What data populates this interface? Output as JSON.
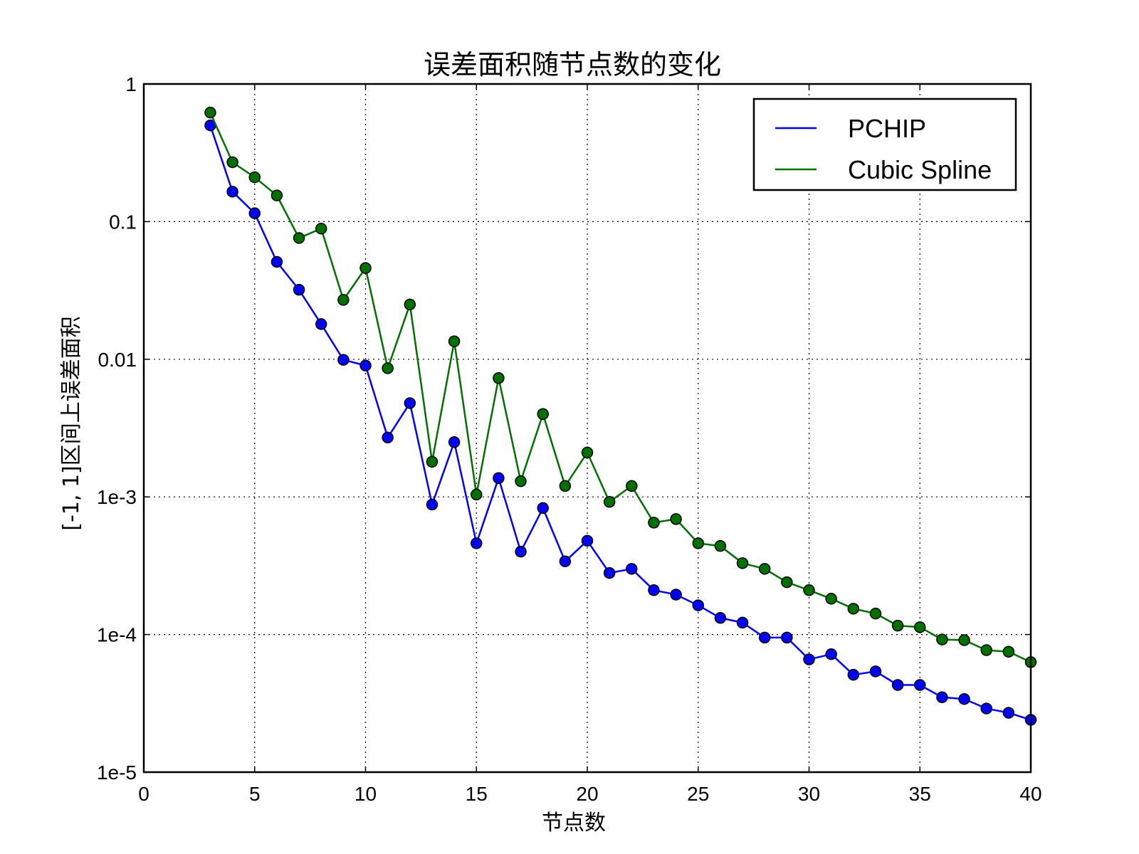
{
  "chart_data": {
    "type": "line",
    "title": "误差面积随节点数的变化",
    "xlabel": "节点数",
    "ylabel": "[-1, 1]区间上误差面积",
    "xlim": [
      0,
      40
    ],
    "ylim": [
      1e-05,
      1
    ],
    "yscale": "log",
    "grid": true,
    "legend_position": "top-right",
    "x_ticks": [
      "0",
      "5",
      "10",
      "15",
      "20",
      "25",
      "30",
      "35",
      "40"
    ],
    "y_ticks": [
      "1e-5",
      "1e-4",
      "1e-3",
      "0.01",
      "0.1",
      "1"
    ],
    "x": [
      3,
      4,
      5,
      6,
      7,
      8,
      9,
      10,
      11,
      12,
      13,
      14,
      15,
      16,
      17,
      18,
      19,
      20,
      21,
      22,
      23,
      24,
      25,
      26,
      27,
      28,
      29,
      30,
      31,
      32,
      33,
      34,
      35,
      36,
      37,
      38,
      39,
      40
    ],
    "series": [
      {
        "name": "PCHIP",
        "color": "#0000ff",
        "values": [
          0.5,
          0.165,
          0.115,
          0.051,
          0.032,
          0.018,
          0.0099,
          0.009,
          0.0027,
          0.0048,
          0.00088,
          0.0025,
          0.00046,
          0.00137,
          0.0004,
          0.00083,
          0.00034,
          0.00048,
          0.00028,
          0.0003,
          0.00021,
          0.000195,
          0.000163,
          0.000132,
          0.000122,
          9.5e-05,
          9.5e-05,
          6.6e-05,
          7.2e-05,
          5.1e-05,
          5.4e-05,
          4.3e-05,
          4.3e-05,
          3.5e-05,
          3.4e-05,
          2.9e-05,
          2.7e-05,
          2.4e-05
        ]
      },
      {
        "name": "Cubic Spline",
        "color": "#007000",
        "values": [
          0.62,
          0.27,
          0.21,
          0.155,
          0.076,
          0.089,
          0.027,
          0.046,
          0.0086,
          0.025,
          0.0018,
          0.0135,
          0.00104,
          0.0073,
          0.0013,
          0.004,
          0.0012,
          0.0021,
          0.00092,
          0.0012,
          0.00065,
          0.00069,
          0.00046,
          0.00044,
          0.00033,
          0.0003,
          0.00024,
          0.00021,
          0.000182,
          0.000154,
          0.000142,
          0.000116,
          0.000113,
          9.2e-05,
          9.1e-05,
          7.7e-05,
          7.5e-05,
          6.3e-05
        ]
      }
    ]
  }
}
